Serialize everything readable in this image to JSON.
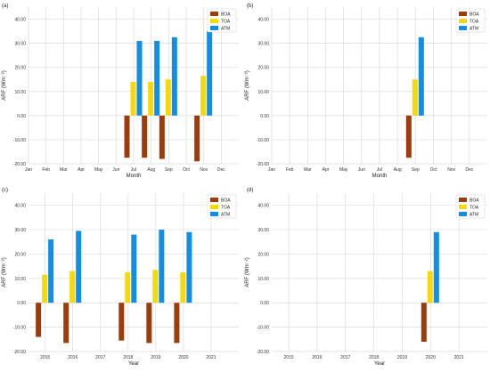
{
  "colors": {
    "BOA": "#9c3c0c",
    "TOA": "#f5d90a",
    "ATM": "#128ee6",
    "grid": "#dcdcdc",
    "plot_bg": "#ffffff"
  },
  "chart_data": [
    {
      "panel_label": "(a)",
      "type": "bar",
      "xlabel": "Month",
      "ylabel": "ARF (Wm⁻²)",
      "ylim": [
        -20,
        45
      ],
      "yticks": [
        "-20.00",
        "-10.00",
        "0.00",
        "10.00",
        "20.00",
        "30.00",
        "40.00"
      ],
      "categories": [
        "Jan",
        "Feb",
        "Mar",
        "Apr",
        "May",
        "Jun",
        "Jul",
        "Aug",
        "Sep",
        "Oct",
        "Nov",
        "Dec"
      ],
      "series": [
        {
          "name": "BOA",
          "values": [
            null,
            null,
            null,
            null,
            null,
            null,
            -17.5,
            -17.5,
            -18.0,
            null,
            -19.0,
            null
          ]
        },
        {
          "name": "TOA",
          "values": [
            null,
            null,
            null,
            null,
            null,
            null,
            14.0,
            14.0,
            15.0,
            null,
            16.5,
            null
          ]
        },
        {
          "name": "ATM",
          "values": [
            null,
            null,
            null,
            null,
            null,
            null,
            31.0,
            31.0,
            32.5,
            null,
            35.0,
            null
          ]
        }
      ],
      "legend": "top-right",
      "grid": true
    },
    {
      "panel_label": "(b)",
      "type": "bar",
      "xlabel": "Month",
      "ylabel": "ARF (Wm⁻²)",
      "ylim": [
        -20,
        45
      ],
      "yticks": [
        "-20.00",
        "-10.00",
        "0.00",
        "10.00",
        "20.00",
        "30.00",
        "40.00"
      ],
      "categories": [
        "Jan",
        "Feb",
        "Mar",
        "Apr",
        "May",
        "Jun",
        "Jul",
        "Aug",
        "Sep",
        "Oct",
        "Nov",
        "Dec"
      ],
      "series": [
        {
          "name": "BOA",
          "values": [
            null,
            null,
            null,
            null,
            null,
            null,
            null,
            null,
            -17.5,
            null,
            null,
            null
          ]
        },
        {
          "name": "TOA",
          "values": [
            null,
            null,
            null,
            null,
            null,
            null,
            null,
            null,
            15.0,
            null,
            null,
            null
          ]
        },
        {
          "name": "ATM",
          "values": [
            null,
            null,
            null,
            null,
            null,
            null,
            null,
            null,
            32.5,
            null,
            null,
            null
          ]
        }
      ],
      "legend": "top-right",
      "grid": true
    },
    {
      "panel_label": "(c)",
      "type": "bar",
      "xlabel": "Year",
      "ylabel": "ARF (Wm⁻²)",
      "ylim": [
        -20,
        45
      ],
      "yticks": [
        "-20.00",
        "-10.00",
        "0.00",
        "10.00",
        "20.00",
        "30.00",
        "40.00"
      ],
      "categories": [
        "2015",
        "2016",
        "2017",
        "2018",
        "2019",
        "2020",
        "2021"
      ],
      "series": [
        {
          "name": "BOA",
          "values": [
            -14.0,
            -16.5,
            null,
            -15.5,
            -16.5,
            -16.5,
            null
          ]
        },
        {
          "name": "TOA",
          "values": [
            11.5,
            13.0,
            null,
            12.5,
            13.5,
            12.5,
            null
          ]
        },
        {
          "name": "ATM",
          "values": [
            26.0,
            29.5,
            null,
            28.0,
            30.0,
            29.0,
            null
          ]
        }
      ],
      "legend": "top-right",
      "grid": true
    },
    {
      "panel_label": "(d)",
      "type": "bar",
      "xlabel": "Year",
      "ylabel": "ARF (Wm⁻²)",
      "ylim": [
        -20,
        45
      ],
      "yticks": [
        "-20.00",
        "-10.00",
        "0.00",
        "10.00",
        "20.00",
        "30.00",
        "40.00"
      ],
      "categories": [
        "2015",
        "2016",
        "2017",
        "2018",
        "2019",
        "2020",
        "2021"
      ],
      "series": [
        {
          "name": "BOA",
          "values": [
            null,
            null,
            null,
            null,
            null,
            -16.0,
            null
          ]
        },
        {
          "name": "TOA",
          "values": [
            null,
            null,
            null,
            null,
            null,
            13.0,
            null
          ]
        },
        {
          "name": "ATM",
          "values": [
            null,
            null,
            null,
            null,
            null,
            29.0,
            null
          ]
        }
      ],
      "legend": "top-right",
      "grid": true
    }
  ]
}
